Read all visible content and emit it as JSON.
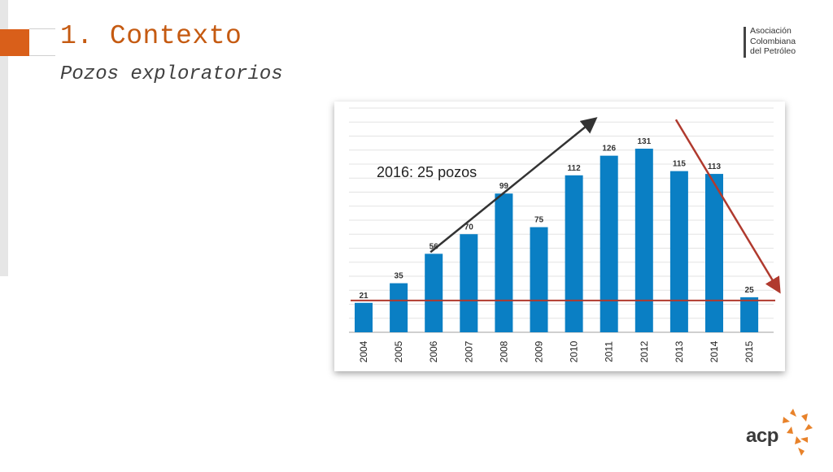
{
  "slide": {
    "title": "1. Contexto",
    "subtitle": "Pozos exploratorios"
  },
  "logo": {
    "lines": [
      "Asociación",
      "Colombiana",
      "del Petróleo"
    ]
  },
  "footer_logo": {
    "text": "acp"
  },
  "chart_data": {
    "type": "bar",
    "categories": [
      "2004",
      "2005",
      "2006",
      "2007",
      "2008",
      "2009",
      "2010",
      "2011",
      "2012",
      "2013",
      "2014",
      "2015"
    ],
    "values": [
      21,
      35,
      56,
      70,
      99,
      75,
      112,
      126,
      131,
      115,
      113,
      25
    ],
    "title": "",
    "xlabel": "",
    "ylabel": "",
    "ylim": [
      0,
      160
    ],
    "grid": true,
    "legend": "none",
    "bar_color": "#0a7fc4",
    "annotations": [
      {
        "text": "2016: 25 pozos"
      }
    ],
    "reference_line": {
      "value": 25,
      "color": "#b03a2e"
    },
    "trend_up_arrow": {
      "from": {
        "x": "2006",
        "y": 56
      },
      "to": {
        "x": "2010",
        "y": 150
      },
      "color": "#333333"
    },
    "trend_down_arrow": {
      "from": {
        "x": "2013",
        "y": 150
      },
      "to": {
        "x": "2015",
        "y": 30
      },
      "color": "#b03a2e"
    }
  }
}
